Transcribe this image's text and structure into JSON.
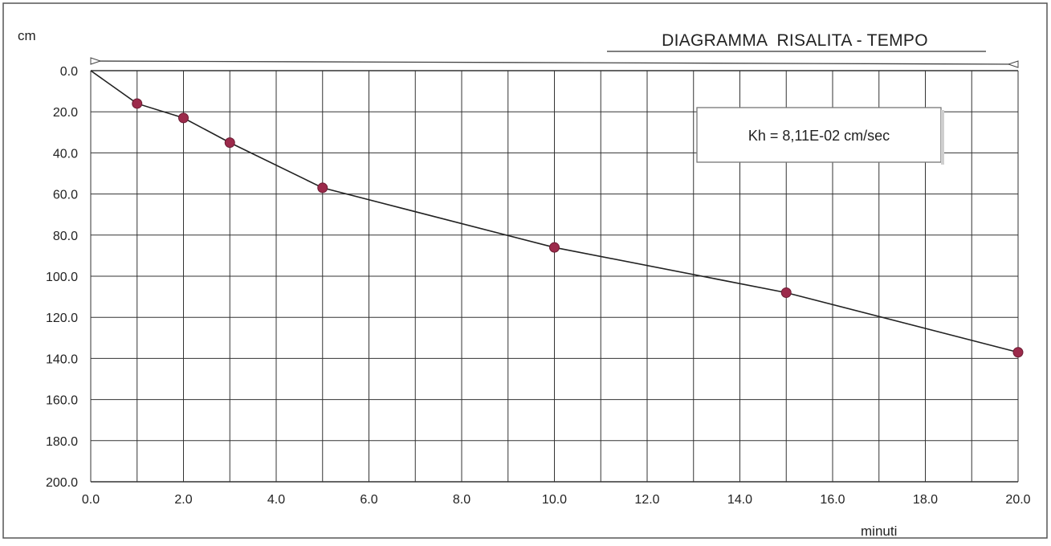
{
  "chart_data": {
    "type": "line",
    "title": "DIAGRAMMA  RISALITA - TEMPO",
    "ylabel": "cm",
    "xlabel": "minuti",
    "annotation": "Kh = 8,11E-02 cm/sec",
    "xlim": [
      0,
      20
    ],
    "ylim": [
      0,
      200
    ],
    "y_inverted": true,
    "grid": true,
    "x_ticks": [
      "0.0",
      "2.0",
      "4.0",
      "6.0",
      "8.0",
      "10.0",
      "12.0",
      "14.0",
      "16.0",
      "18.0",
      "20.0"
    ],
    "y_ticks": [
      "0.0",
      "20.0",
      "40.0",
      "60.0",
      "80.0",
      "100.0",
      "120.0",
      "140.0",
      "160.0",
      "180.0",
      "200.0"
    ],
    "series": [
      {
        "x": [
          0,
          1,
          2,
          3,
          5,
          10,
          15,
          20
        ],
        "y": [
          0,
          16,
          23,
          35,
          57,
          86,
          108,
          137
        ],
        "marker_color": "#9c2a4b",
        "line_color": "#222222"
      }
    ]
  }
}
